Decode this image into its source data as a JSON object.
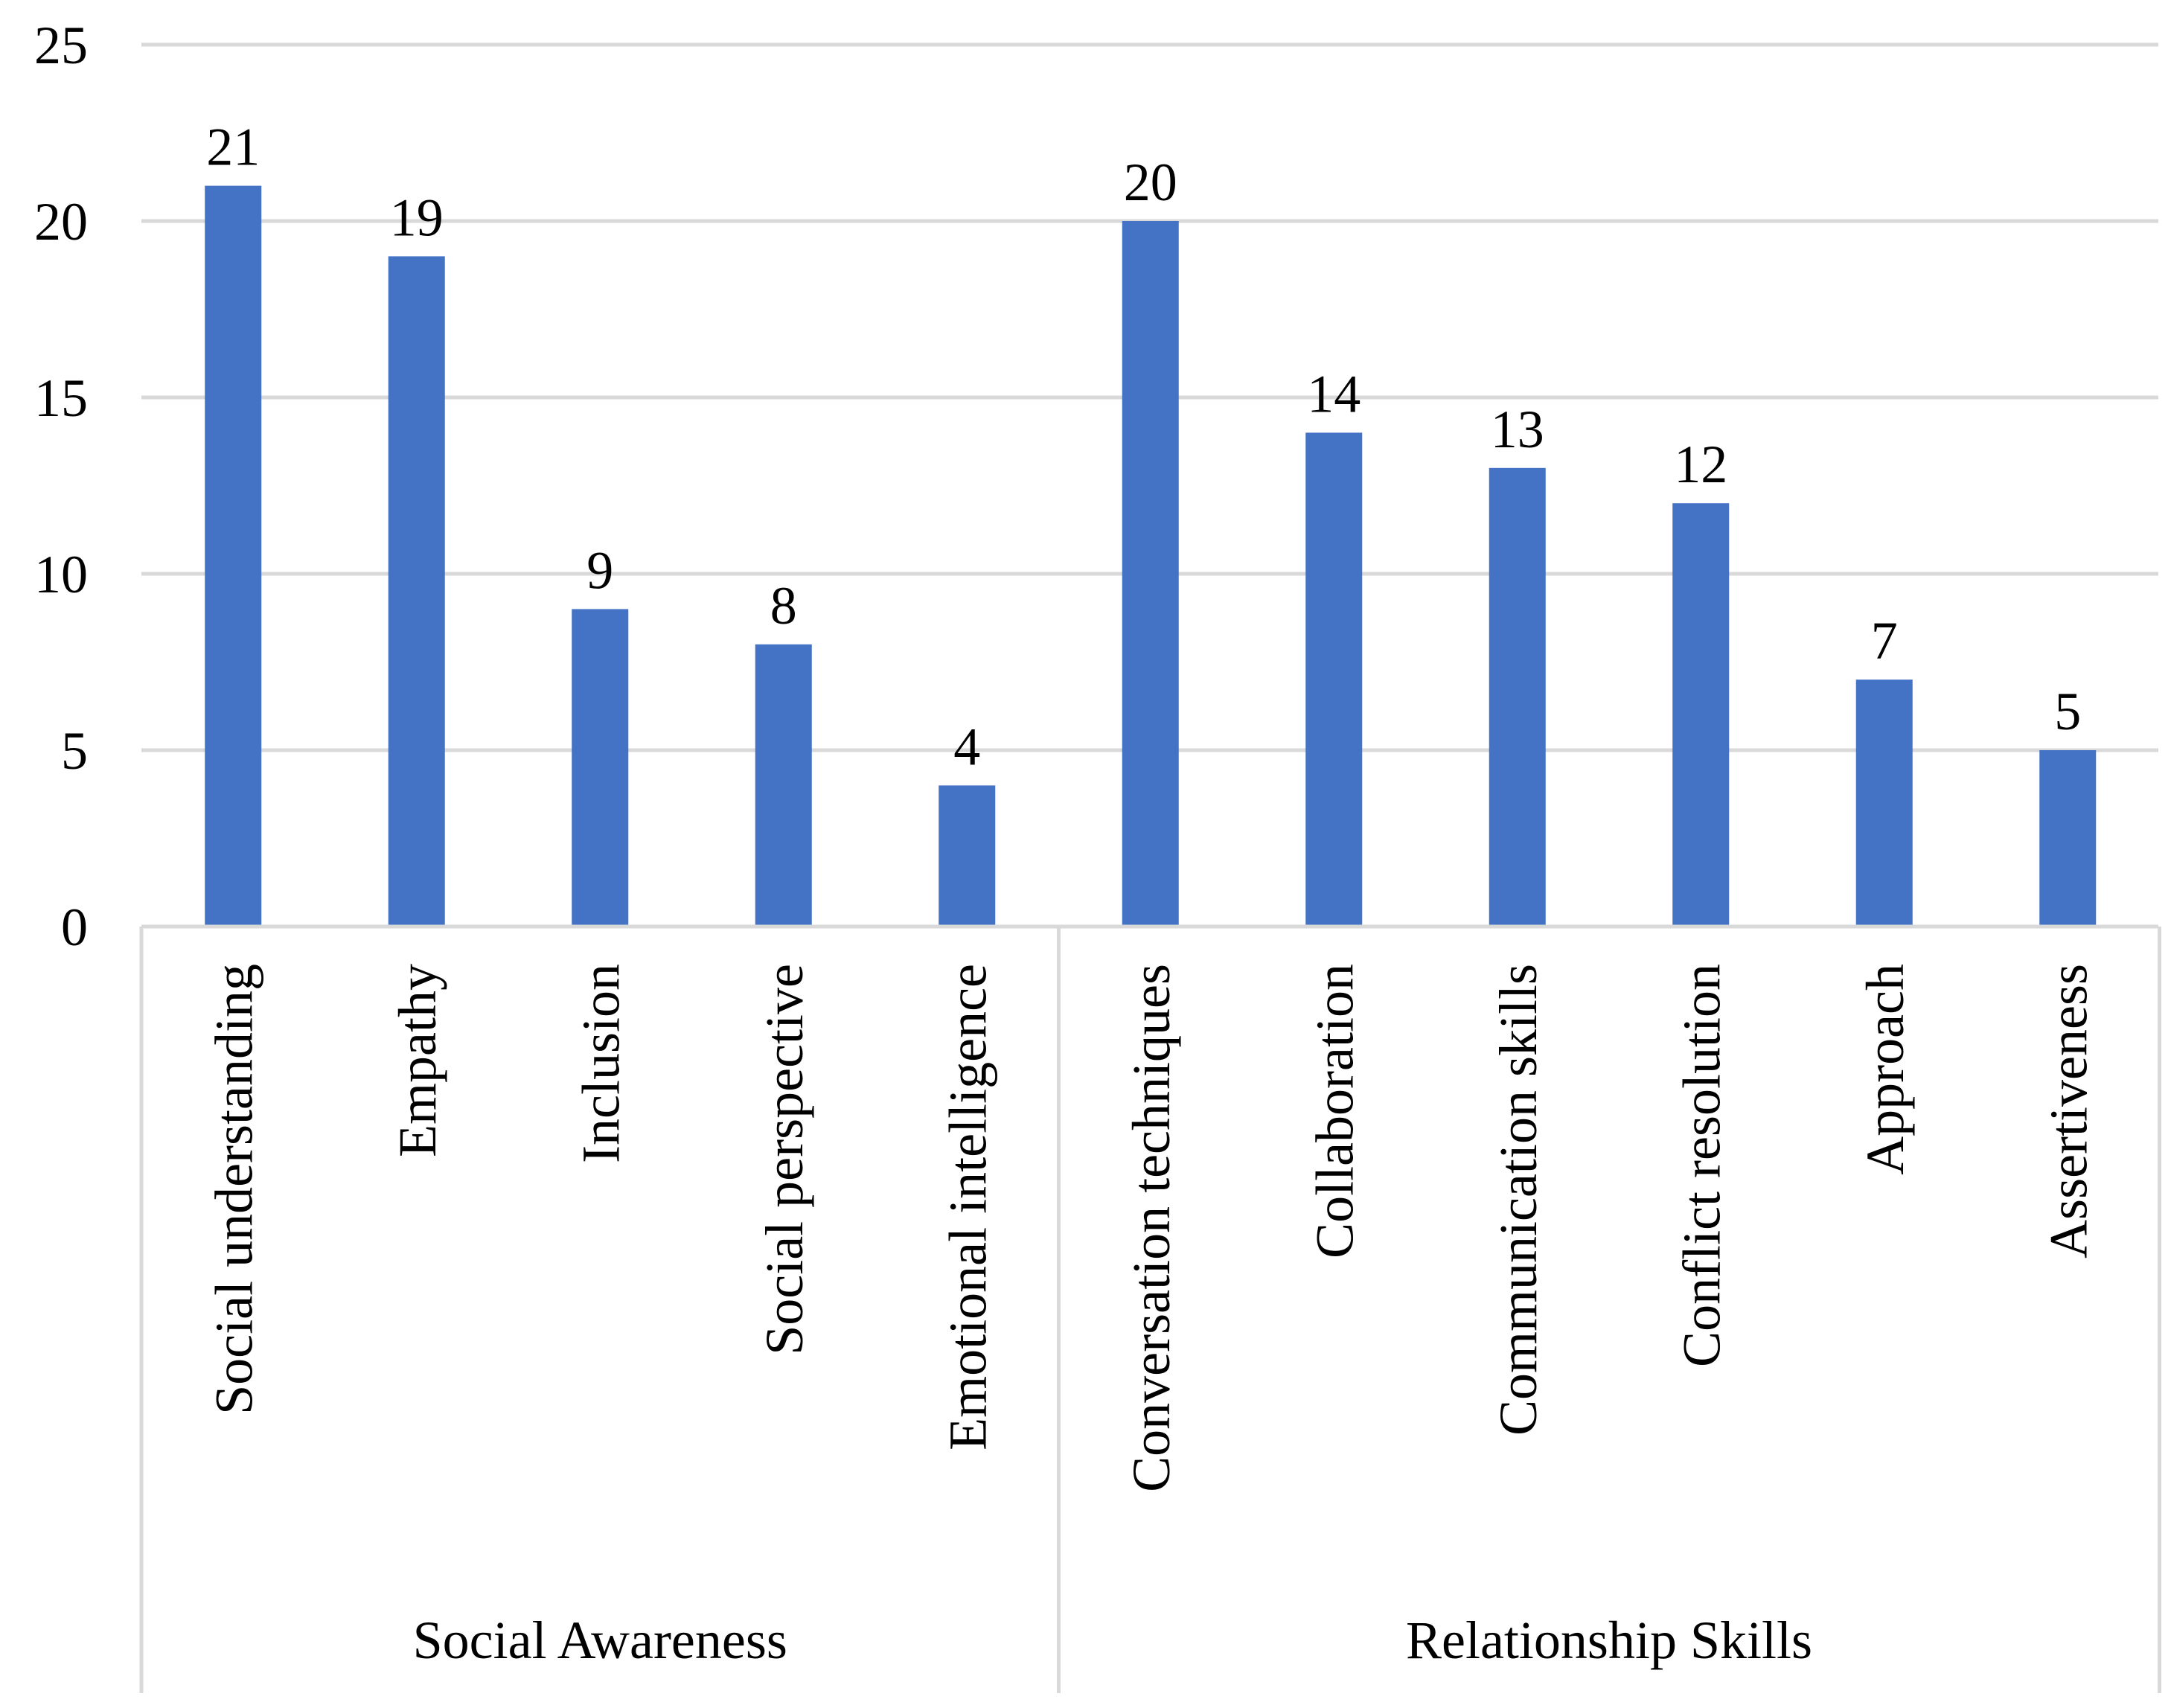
{
  "chart_data": {
    "type": "bar",
    "title": "",
    "xlabel": "",
    "ylabel": "",
    "ylim": [
      0,
      25
    ],
    "yticks": [
      0,
      5,
      10,
      15,
      20,
      25
    ],
    "grid": true,
    "legend": "none",
    "bar_color": "#4472c4",
    "groups": [
      {
        "name": "Social Awareness",
        "categories": [
          "Social understanding",
          "Empathy",
          "Inclusion",
          "Social perspective",
          "Emotional intelligence"
        ],
        "values": [
          21,
          19,
          9,
          8,
          4
        ]
      },
      {
        "name": "Relationship Skills",
        "categories": [
          "Conversation techniques",
          "Collaboration",
          "Communication skills",
          "Conflict resolution",
          "Approach",
          "Assertiveness"
        ],
        "values": [
          20,
          14,
          13,
          12,
          7,
          5
        ]
      }
    ]
  }
}
